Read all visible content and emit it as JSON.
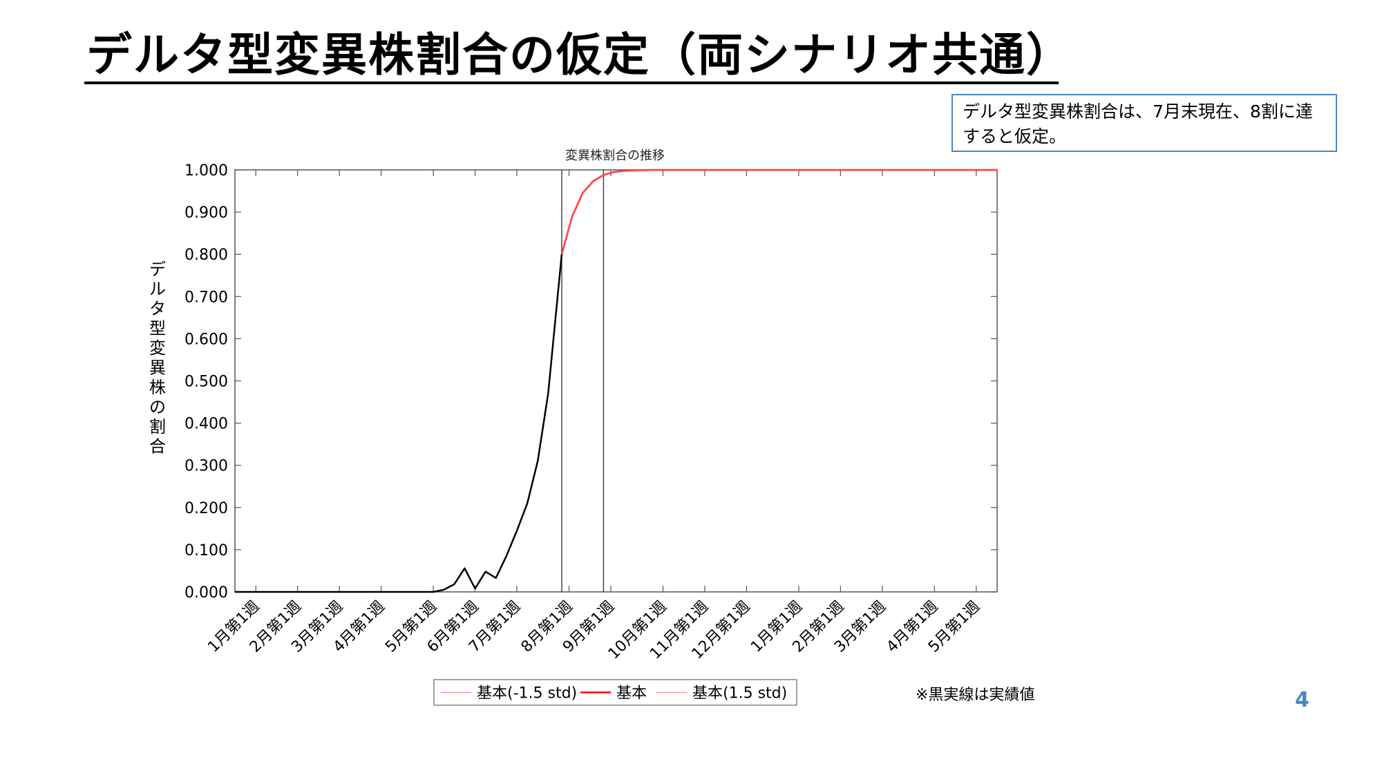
{
  "slide": {
    "title": "デルタ型変異株割合の仮定（両シナリオ共通）",
    "note": "デルタ型変異株割合は、7月末現在、8割に達すると仮定。",
    "footnote": "※黒実線は実績値",
    "page_number": "4"
  },
  "colors": {
    "accent": "#4a86c5",
    "forecast_line": "#ff0000",
    "band_line": "#ff8080",
    "actual_line": "#000000"
  },
  "chart_data": {
    "type": "line",
    "title": "変異株割合の推移",
    "ylabel": "デルタ型変異株の割合",
    "xlabel": "",
    "ylim": [
      0,
      1
    ],
    "yticks": [
      "0.000",
      "0.100",
      "0.200",
      "0.300",
      "0.400",
      "0.500",
      "0.600",
      "0.700",
      "0.800",
      "0.900",
      "1.000"
    ],
    "x_unit": "week index (0 = 12月第4週)",
    "xlim": [
      0,
      73
    ],
    "xticks": [
      {
        "x": 2,
        "label": "1月第1週"
      },
      {
        "x": 6,
        "label": "2月第1週"
      },
      {
        "x": 10,
        "label": "3月第1週"
      },
      {
        "x": 14,
        "label": "4月第1週"
      },
      {
        "x": 19,
        "label": "5月第1週"
      },
      {
        "x": 23,
        "label": "6月第1週"
      },
      {
        "x": 27,
        "label": "7月第1週"
      },
      {
        "x": 32,
        "label": "8月第1週"
      },
      {
        "x": 36,
        "label": "9月第1週"
      },
      {
        "x": 41,
        "label": "10月第1週"
      },
      {
        "x": 45,
        "label": "11月第1週"
      },
      {
        "x": 49,
        "label": "12月第1週"
      },
      {
        "x": 54,
        "label": "1月第1週"
      },
      {
        "x": 58,
        "label": "2月第1週"
      },
      {
        "x": 62,
        "label": "3月第1週"
      },
      {
        "x": 67,
        "label": "4月第1週"
      },
      {
        "x": 71,
        "label": "5月第1週"
      }
    ],
    "vlines": [
      31.3,
      35.3
    ],
    "grid": false,
    "legend_position": "bottom",
    "series": [
      {
        "name": "基本(-1.5 std)",
        "color": "#ff8080",
        "width": 1,
        "x": [
          31.3,
          32.3,
          33.3,
          34.3,
          35.3,
          36.3,
          37.3,
          38.3,
          40,
          73
        ],
        "y": [
          0.8,
          0.89,
          0.945,
          0.973,
          0.988,
          0.995,
          0.998,
          0.999,
          1.0,
          1.0
        ]
      },
      {
        "name": "基本",
        "color": "#ff0000",
        "width": 2.5,
        "x": [
          31.3,
          32.3,
          33.3,
          34.3,
          35.3,
          36.3,
          37.3,
          38.3,
          40,
          73
        ],
        "y": [
          0.8,
          0.89,
          0.945,
          0.973,
          0.988,
          0.995,
          0.998,
          0.999,
          1.0,
          1.0
        ]
      },
      {
        "name": "基本(1.5 std)",
        "color": "#ff8080",
        "width": 1,
        "x": [
          31.3,
          32.3,
          33.3,
          34.3,
          35.3,
          36.3,
          37.3,
          38.3,
          40,
          73
        ],
        "y": [
          0.8,
          0.89,
          0.945,
          0.973,
          0.988,
          0.995,
          0.998,
          0.999,
          1.0,
          1.0
        ]
      },
      {
        "name": "",
        "color": "#000000",
        "width": 2.5,
        "x": [
          0,
          18,
          19,
          20,
          21,
          22,
          23,
          24,
          25,
          26,
          27,
          28,
          29,
          30,
          31.3
        ],
        "y": [
          0,
          0,
          0,
          0.005,
          0.018,
          0.056,
          0.008,
          0.048,
          0.033,
          0.085,
          0.145,
          0.21,
          0.31,
          0.47,
          0.8
        ]
      }
    ]
  }
}
